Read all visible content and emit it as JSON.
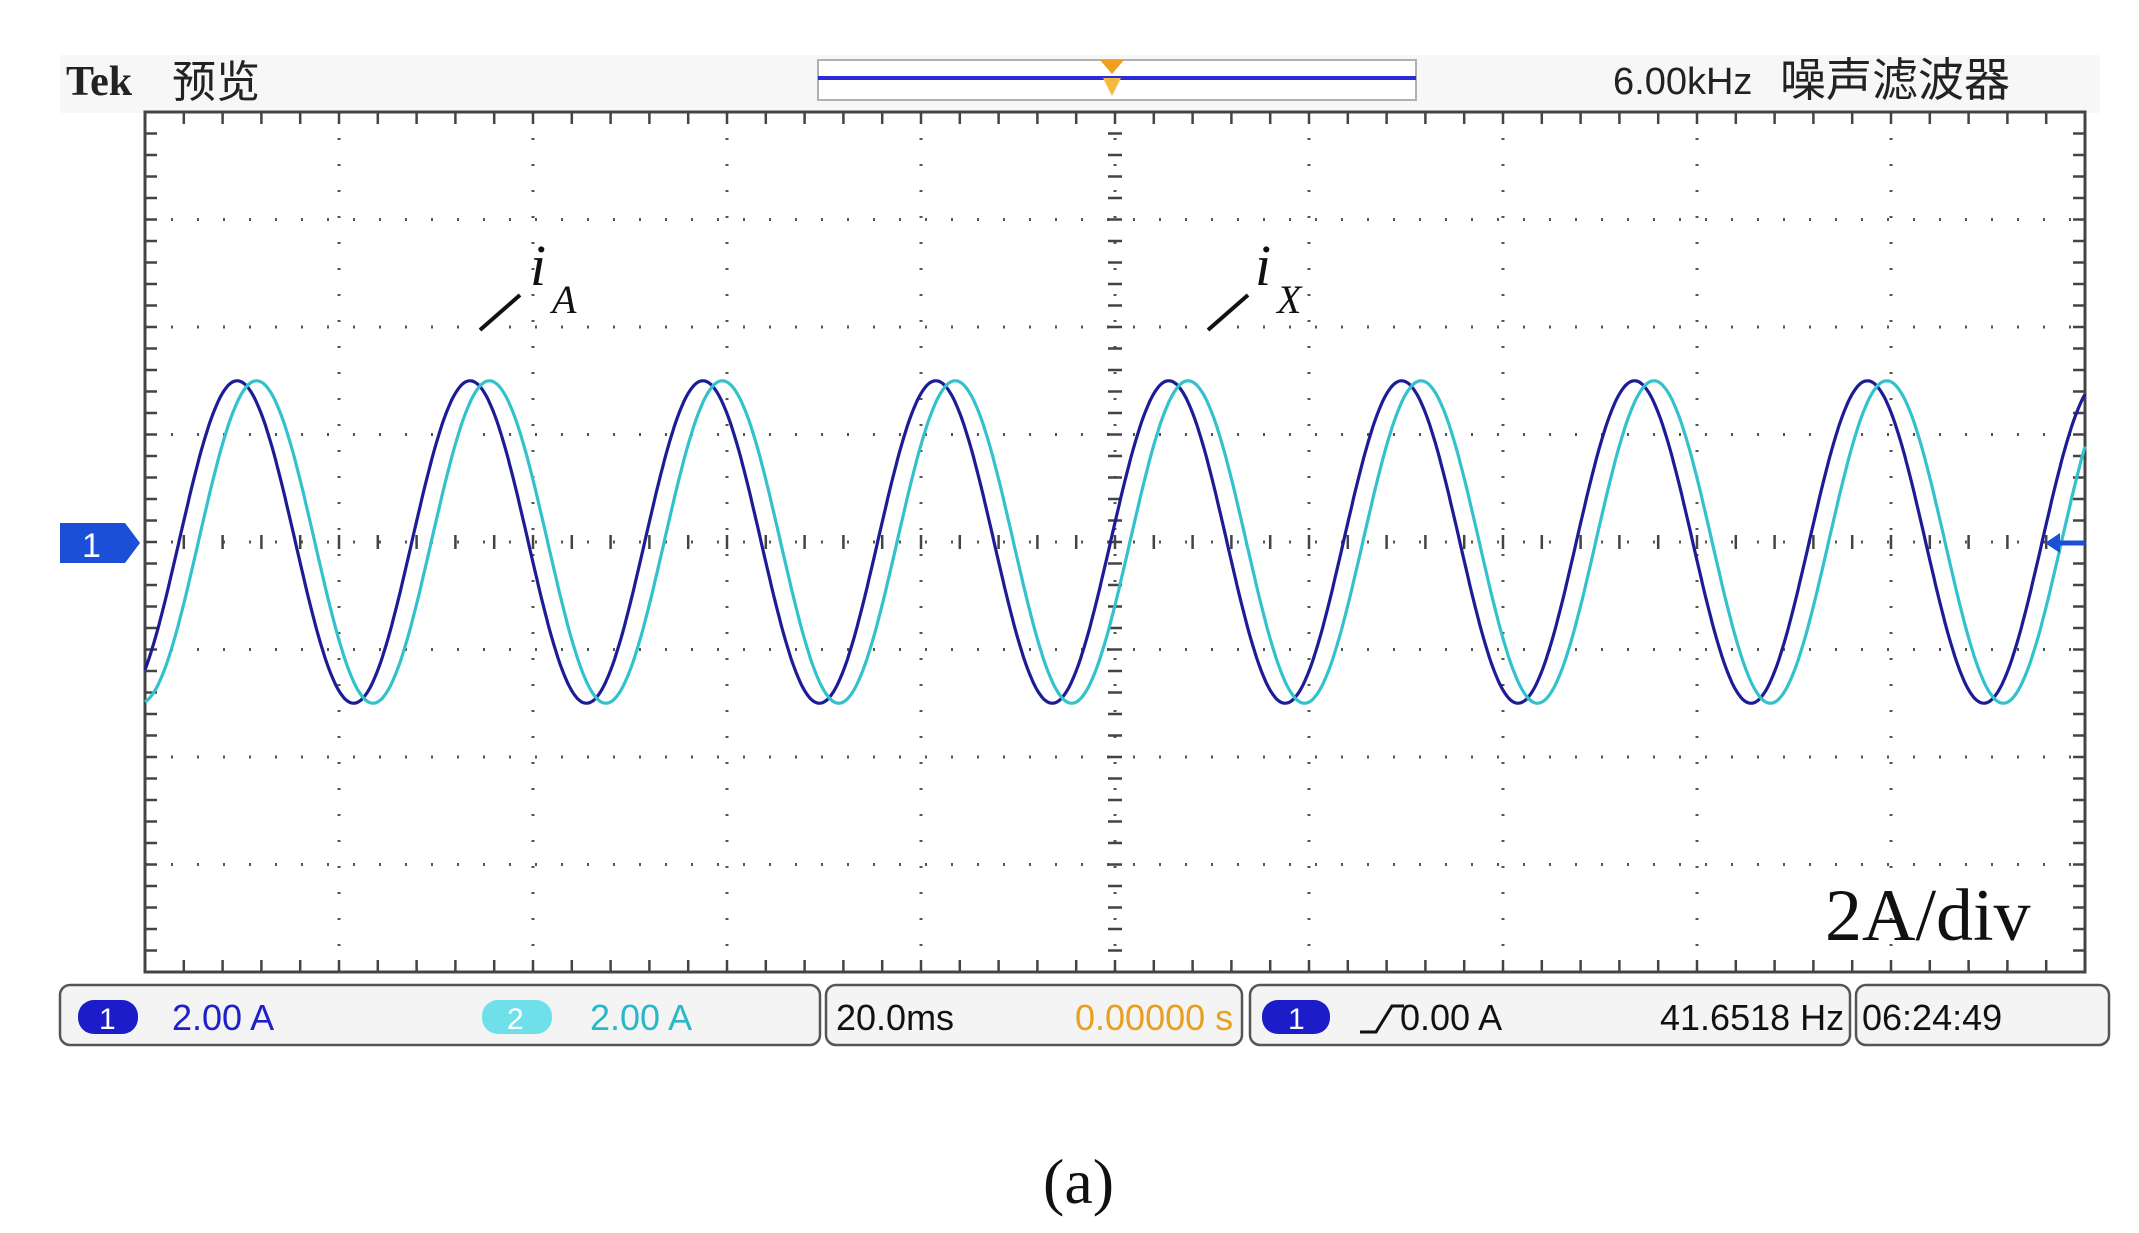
{
  "header": {
    "brand": "Tek",
    "mode": "预览",
    "filter_freq": "6.00kHz",
    "filter_label": "噪声滤波器"
  },
  "chart_data": {
    "type": "line",
    "xlabel": "",
    "ylabel": "",
    "x_range_ms": [
      -100,
      100
    ],
    "y_range_A": [
      -8,
      8
    ],
    "grid": true,
    "series": [
      {
        "name": "i",
        "subscript": "A",
        "color": "#1c1c96",
        "amplitude_A": 3.0,
        "frequency_hz": 41.65,
        "phase_offset_ms": 0
      },
      {
        "name": "i",
        "subscript": "X",
        "color": "#33c2cc",
        "amplitude_A": 3.0,
        "frequency_hz": 41.65,
        "phase_offset_ms": 2.0
      }
    ],
    "scale_label": "2A/div"
  },
  "status": {
    "ch1_badge": "1",
    "ch1_scale": "2.00 A",
    "ch2_badge": "2",
    "ch2_scale": "2.00 A",
    "timebase": "20.0ms",
    "position": "0.00000 s",
    "trigger_badge": "1",
    "trigger_level": "0.00 A",
    "frequency": "41.6518 Hz",
    "time": "06:24:49"
  },
  "markers": {
    "ch1_marker": "1"
  },
  "caption": "(a)",
  "colors": {
    "ch1": "#1c1c96",
    "ch2": "#33c2cc",
    "accent": "#2b2bd6",
    "trigger": "#f0a020"
  }
}
